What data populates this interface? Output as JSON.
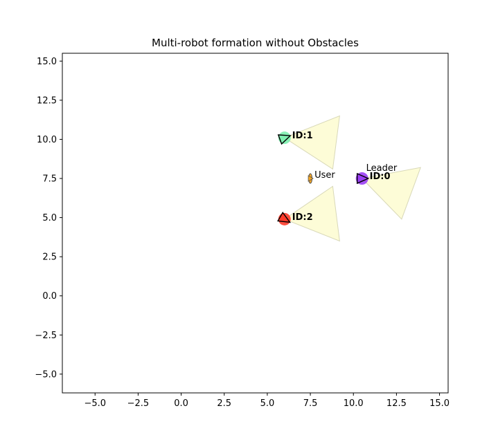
{
  "chart_data": {
    "type": "scatter",
    "title": "Multi-robot formation without Obstacles",
    "xlabel": "",
    "ylabel": "",
    "xlim": [
      -6.9,
      15.5
    ],
    "ylim": [
      -6.2,
      15.5
    ],
    "xticks": [
      -5.0,
      -2.5,
      0.0,
      2.5,
      5.0,
      7.5,
      10.0,
      12.5,
      15.0
    ],
    "xtick_labels": [
      "−5.0",
      "−2.5",
      "0.0",
      "2.5",
      "5.0",
      "7.5",
      "10.0",
      "12.5",
      "15.0"
    ],
    "yticks": [
      -5.0,
      -2.5,
      0.0,
      2.5,
      5.0,
      7.5,
      10.0,
      12.5,
      15.0
    ],
    "ytick_labels": [
      "−5.0",
      "−2.5",
      "0.0",
      "2.5",
      "5.0",
      "7.5",
      "10.0",
      "12.5",
      "15.0"
    ],
    "grid": false,
    "robots": [
      {
        "id_label": "ID:0",
        "x": 10.5,
        "y": 7.5,
        "heading_deg": 0,
        "color": "#9b3ef5",
        "fov": [
          [
            10.5,
            7.5
          ],
          [
            13.9,
            8.2
          ],
          [
            12.8,
            4.9
          ]
        ]
      },
      {
        "id_label": "ID:1",
        "x": 6.0,
        "y": 10.1,
        "heading_deg": 20,
        "color": "#7ef0b0",
        "fov": [
          [
            6.0,
            10.1
          ],
          [
            9.2,
            11.5
          ],
          [
            8.8,
            8.1
          ]
        ]
      },
      {
        "id_label": "ID:2",
        "x": 6.0,
        "y": 4.9,
        "heading_deg": -30,
        "color": "#ff3b2b",
        "fov": [
          [
            6.0,
            4.9
          ],
          [
            8.8,
            7.0
          ],
          [
            9.2,
            3.5
          ]
        ]
      }
    ],
    "user": {
      "label": "User",
      "x": 7.5,
      "y": 7.5,
      "color": "#f5a623"
    },
    "leader_label": "Leader",
    "fov_color": "#fdfbd0",
    "fov_edge_color": "#d8d8b8"
  }
}
